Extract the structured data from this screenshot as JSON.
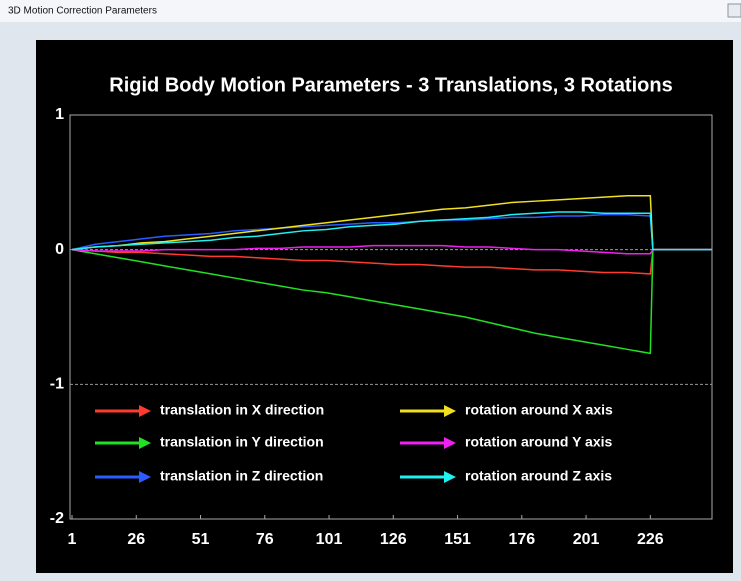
{
  "window": {
    "title": "3D Motion Correction Parameters"
  },
  "chart_data": {
    "type": "line",
    "title": "Rigid Body Motion Parameters - 3 Translations, 3 Rotations",
    "x": [
      1,
      10,
      19,
      28,
      37,
      46,
      55,
      64,
      73,
      82,
      91,
      100,
      109,
      118,
      127,
      136,
      145,
      154,
      163,
      172,
      181,
      190,
      199,
      208,
      217,
      226,
      227,
      250
    ],
    "xlim": [
      1,
      250
    ],
    "xticks": [
      1,
      26,
      51,
      76,
      101,
      126,
      151,
      176,
      201,
      226
    ],
    "ylim": [
      -2,
      1
    ],
    "yticks": [
      1,
      0,
      -1,
      -2
    ],
    "grid": true,
    "series": [
      {
        "name": "translation in X direction",
        "color": "#ff3b2f",
        "values": [
          0,
          -0.01,
          -0.02,
          -0.02,
          -0.03,
          -0.04,
          -0.05,
          -0.05,
          -0.06,
          -0.07,
          -0.08,
          -0.08,
          -0.09,
          -0.1,
          -0.11,
          -0.11,
          -0.12,
          -0.13,
          -0.13,
          -0.14,
          -0.15,
          -0.15,
          -0.16,
          -0.17,
          -0.17,
          -0.18,
          0,
          0
        ]
      },
      {
        "name": "translation in Y direction",
        "color": "#22e022",
        "values": [
          0,
          -0.03,
          -0.06,
          -0.09,
          -0.12,
          -0.15,
          -0.18,
          -0.21,
          -0.24,
          -0.27,
          -0.3,
          -0.32,
          -0.35,
          -0.38,
          -0.41,
          -0.44,
          -0.47,
          -0.5,
          -0.54,
          -0.58,
          -0.62,
          -0.65,
          -0.68,
          -0.71,
          -0.74,
          -0.77,
          0,
          0
        ]
      },
      {
        "name": "translation in Z direction",
        "color": "#2a5cff",
        "values": [
          0,
          0.04,
          0.06,
          0.08,
          0.1,
          0.11,
          0.12,
          0.14,
          0.15,
          0.16,
          0.17,
          0.18,
          0.19,
          0.2,
          0.2,
          0.21,
          0.22,
          0.22,
          0.23,
          0.24,
          0.24,
          0.25,
          0.25,
          0.26,
          0.26,
          0.25,
          0,
          0
        ]
      },
      {
        "name": "rotation around X axis",
        "color": "#f0e020",
        "values": [
          0,
          0.02,
          0.03,
          0.05,
          0.06,
          0.08,
          0.1,
          0.12,
          0.14,
          0.16,
          0.18,
          0.2,
          0.22,
          0.24,
          0.26,
          0.28,
          0.3,
          0.31,
          0.33,
          0.35,
          0.36,
          0.37,
          0.38,
          0.39,
          0.4,
          0.4,
          0,
          0
        ]
      },
      {
        "name": "rotation around Y axis",
        "color": "#f020f0",
        "values": [
          0,
          -0.01,
          -0.01,
          -0.01,
          0,
          0,
          0,
          0,
          0.01,
          0.01,
          0.02,
          0.02,
          0.02,
          0.03,
          0.03,
          0.03,
          0.03,
          0.02,
          0.02,
          0.01,
          0,
          0,
          -0.01,
          -0.02,
          -0.03,
          -0.03,
          0,
          0
        ]
      },
      {
        "name": "rotation around Z axis",
        "color": "#20f0f0",
        "values": [
          0,
          0.02,
          0.03,
          0.04,
          0.05,
          0.06,
          0.07,
          0.09,
          0.1,
          0.12,
          0.14,
          0.15,
          0.17,
          0.18,
          0.19,
          0.21,
          0.22,
          0.23,
          0.24,
          0.26,
          0.27,
          0.28,
          0.28,
          0.27,
          0.27,
          0.27,
          0,
          0
        ]
      }
    ]
  }
}
